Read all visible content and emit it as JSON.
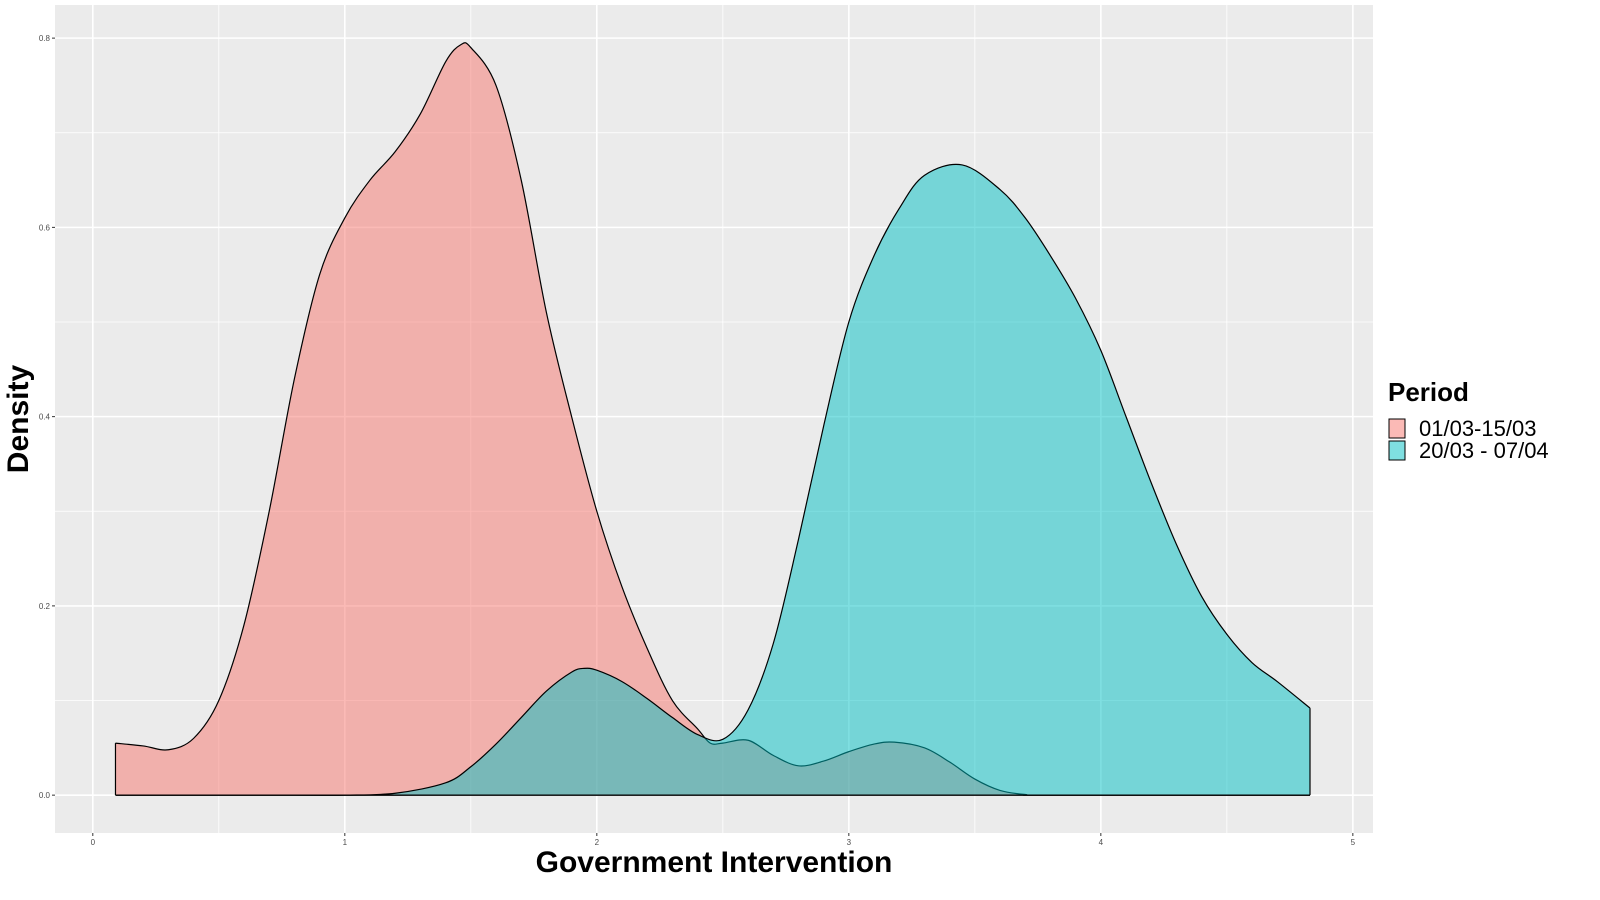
{
  "chart_data": {
    "type": "area",
    "title": "",
    "xlabel": "Government Intervention",
    "ylabel": "Density",
    "xlim": [
      -0.15,
      5.08
    ],
    "ylim": [
      -0.04,
      0.835
    ],
    "xticks": [
      "0",
      "1",
      "2",
      "3",
      "4",
      "5"
    ],
    "yticks": [
      "0.0",
      "0.2",
      "0.4",
      "0.6",
      "0.8"
    ],
    "grid": true,
    "legend": {
      "title": "Period",
      "position": "right"
    },
    "series": [
      {
        "name": "01/03-15/03",
        "color": "#F8766D",
        "points": [
          [
            0.09,
            0.055
          ],
          [
            0.2,
            0.052
          ],
          [
            0.3,
            0.048
          ],
          [
            0.4,
            0.06
          ],
          [
            0.5,
            0.1
          ],
          [
            0.6,
            0.18
          ],
          [
            0.7,
            0.3
          ],
          [
            0.8,
            0.44
          ],
          [
            0.9,
            0.55
          ],
          [
            1.0,
            0.61
          ],
          [
            1.1,
            0.65
          ],
          [
            1.2,
            0.68
          ],
          [
            1.3,
            0.72
          ],
          [
            1.4,
            0.775
          ],
          [
            1.46,
            0.793
          ],
          [
            1.5,
            0.79
          ],
          [
            1.6,
            0.75
          ],
          [
            1.7,
            0.65
          ],
          [
            1.8,
            0.51
          ],
          [
            1.9,
            0.4
          ],
          [
            2.0,
            0.3
          ],
          [
            2.1,
            0.22
          ],
          [
            2.2,
            0.155
          ],
          [
            2.3,
            0.1
          ],
          [
            2.4,
            0.07
          ],
          [
            2.45,
            0.055
          ],
          [
            2.5,
            0.055
          ],
          [
            2.6,
            0.058
          ],
          [
            2.7,
            0.042
          ],
          [
            2.8,
            0.031
          ],
          [
            2.9,
            0.036
          ],
          [
            3.0,
            0.046
          ],
          [
            3.1,
            0.054
          ],
          [
            3.18,
            0.056
          ],
          [
            3.3,
            0.05
          ],
          [
            3.4,
            0.035
          ],
          [
            3.5,
            0.017
          ],
          [
            3.6,
            0.005
          ],
          [
            3.7,
            0.0007
          ],
          [
            3.8,
            0.0
          ],
          [
            4.83,
            0.0
          ]
        ]
      },
      {
        "name": "20/03 - 07/04",
        "color": "#00BFC4",
        "points": [
          [
            0.09,
            0.0
          ],
          [
            0.8,
            0.0
          ],
          [
            1.0,
            0.0
          ],
          [
            1.2,
            0.002
          ],
          [
            1.4,
            0.013
          ],
          [
            1.5,
            0.03
          ],
          [
            1.6,
            0.054
          ],
          [
            1.7,
            0.082
          ],
          [
            1.8,
            0.11
          ],
          [
            1.9,
            0.13
          ],
          [
            1.95,
            0.134
          ],
          [
            2.0,
            0.132
          ],
          [
            2.1,
            0.12
          ],
          [
            2.2,
            0.102
          ],
          [
            2.3,
            0.082
          ],
          [
            2.4,
            0.064
          ],
          [
            2.5,
            0.059
          ],
          [
            2.6,
            0.09
          ],
          [
            2.7,
            0.16
          ],
          [
            2.8,
            0.27
          ],
          [
            2.9,
            0.39
          ],
          [
            3.0,
            0.5
          ],
          [
            3.1,
            0.57
          ],
          [
            3.2,
            0.62
          ],
          [
            3.3,
            0.655
          ],
          [
            3.45,
            0.666
          ],
          [
            3.6,
            0.64
          ],
          [
            3.7,
            0.61
          ],
          [
            3.8,
            0.57
          ],
          [
            3.9,
            0.525
          ],
          [
            4.0,
            0.47
          ],
          [
            4.1,
            0.4
          ],
          [
            4.2,
            0.33
          ],
          [
            4.3,
            0.265
          ],
          [
            4.4,
            0.21
          ],
          [
            4.5,
            0.17
          ],
          [
            4.6,
            0.14
          ],
          [
            4.7,
            0.12
          ],
          [
            4.83,
            0.092
          ]
        ]
      }
    ]
  }
}
